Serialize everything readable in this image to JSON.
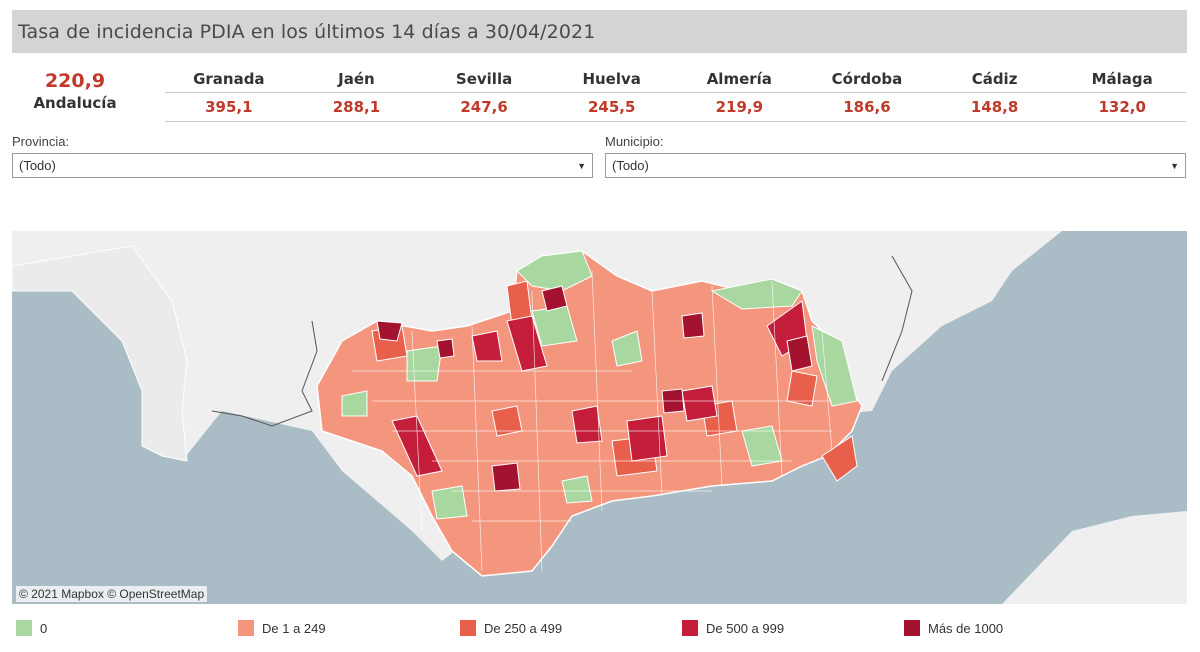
{
  "title": "Tasa de incidencia PDIA en los últimos 14 días a 30/04/2021",
  "total": {
    "value": "220,9",
    "label": "Andalucía"
  },
  "provinces": [
    {
      "name": "Granada",
      "value": "395,1"
    },
    {
      "name": "Jaén",
      "value": "288,1"
    },
    {
      "name": "Sevilla",
      "value": "247,6"
    },
    {
      "name": "Huelva",
      "value": "245,5"
    },
    {
      "name": "Almería",
      "value": "219,9"
    },
    {
      "name": "Córdoba",
      "value": "186,6"
    },
    {
      "name": "Cádiz",
      "value": "148,8"
    },
    {
      "name": "Málaga",
      "value": "132,0"
    }
  ],
  "filters": {
    "provincia": {
      "label": "Provincia:",
      "value": "(Todo)"
    },
    "municipio": {
      "label": "Municipio:",
      "value": "(Todo)"
    }
  },
  "map": {
    "attribution": "© 2021 Mapbox © OpenStreetMap"
  },
  "legend": [
    {
      "label": "0",
      "color": "#a8d8a0"
    },
    {
      "label": "De 1 a 249",
      "color": "#f4957e"
    },
    {
      "label": "De 250 a 499",
      "color": "#e8604c"
    },
    {
      "label": "De 500 a 999",
      "color": "#c41e3a"
    },
    {
      "label": "Más de 1000",
      "color": "#a3122f"
    }
  ],
  "colors": {
    "accent": "#c0392b",
    "water": "#aabcc6",
    "land": "#f0f0f0"
  }
}
